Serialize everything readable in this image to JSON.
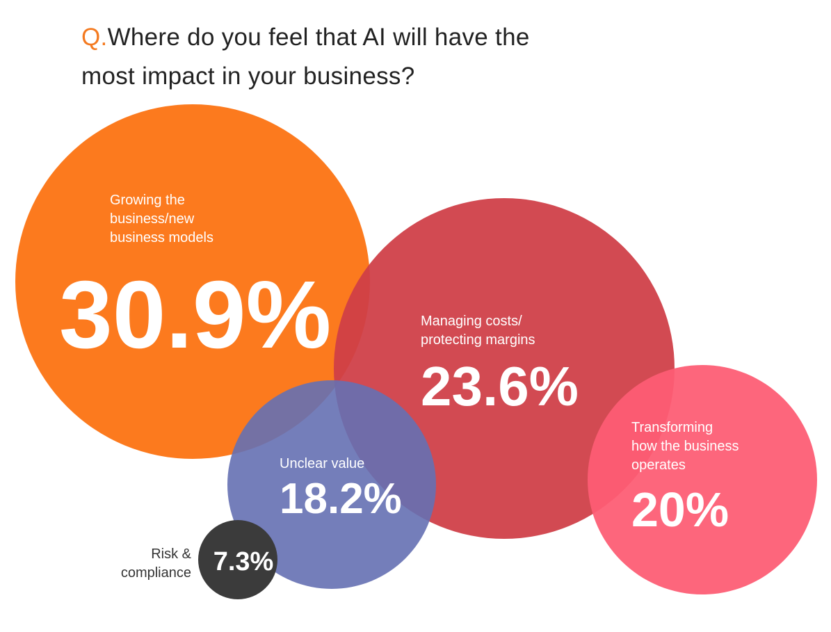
{
  "chart_data": {
    "type": "bubble",
    "title_prefix": "Q.",
    "title": "Where do you feel that AI will have the most impact in your business?",
    "categories": [
      "Growing the\nbusiness/new\nbusiness models",
      "Managing costs/\nprotecting margins",
      "Transforming\nhow the business\noperates",
      "Unclear value",
      "Risk &\ncompliance"
    ],
    "values": [
      30.9,
      23.6,
      20,
      18.2,
      7.3
    ],
    "value_labels": [
      "30.9%",
      "23.6%",
      "20%",
      "18.2%",
      "7.3%"
    ],
    "colors": [
      "#fc7a1e",
      "#cf3f47",
      "#fd5c74",
      "#6570b3",
      "#3b3b3b"
    ],
    "title_prefix_color": "#f47a20"
  }
}
